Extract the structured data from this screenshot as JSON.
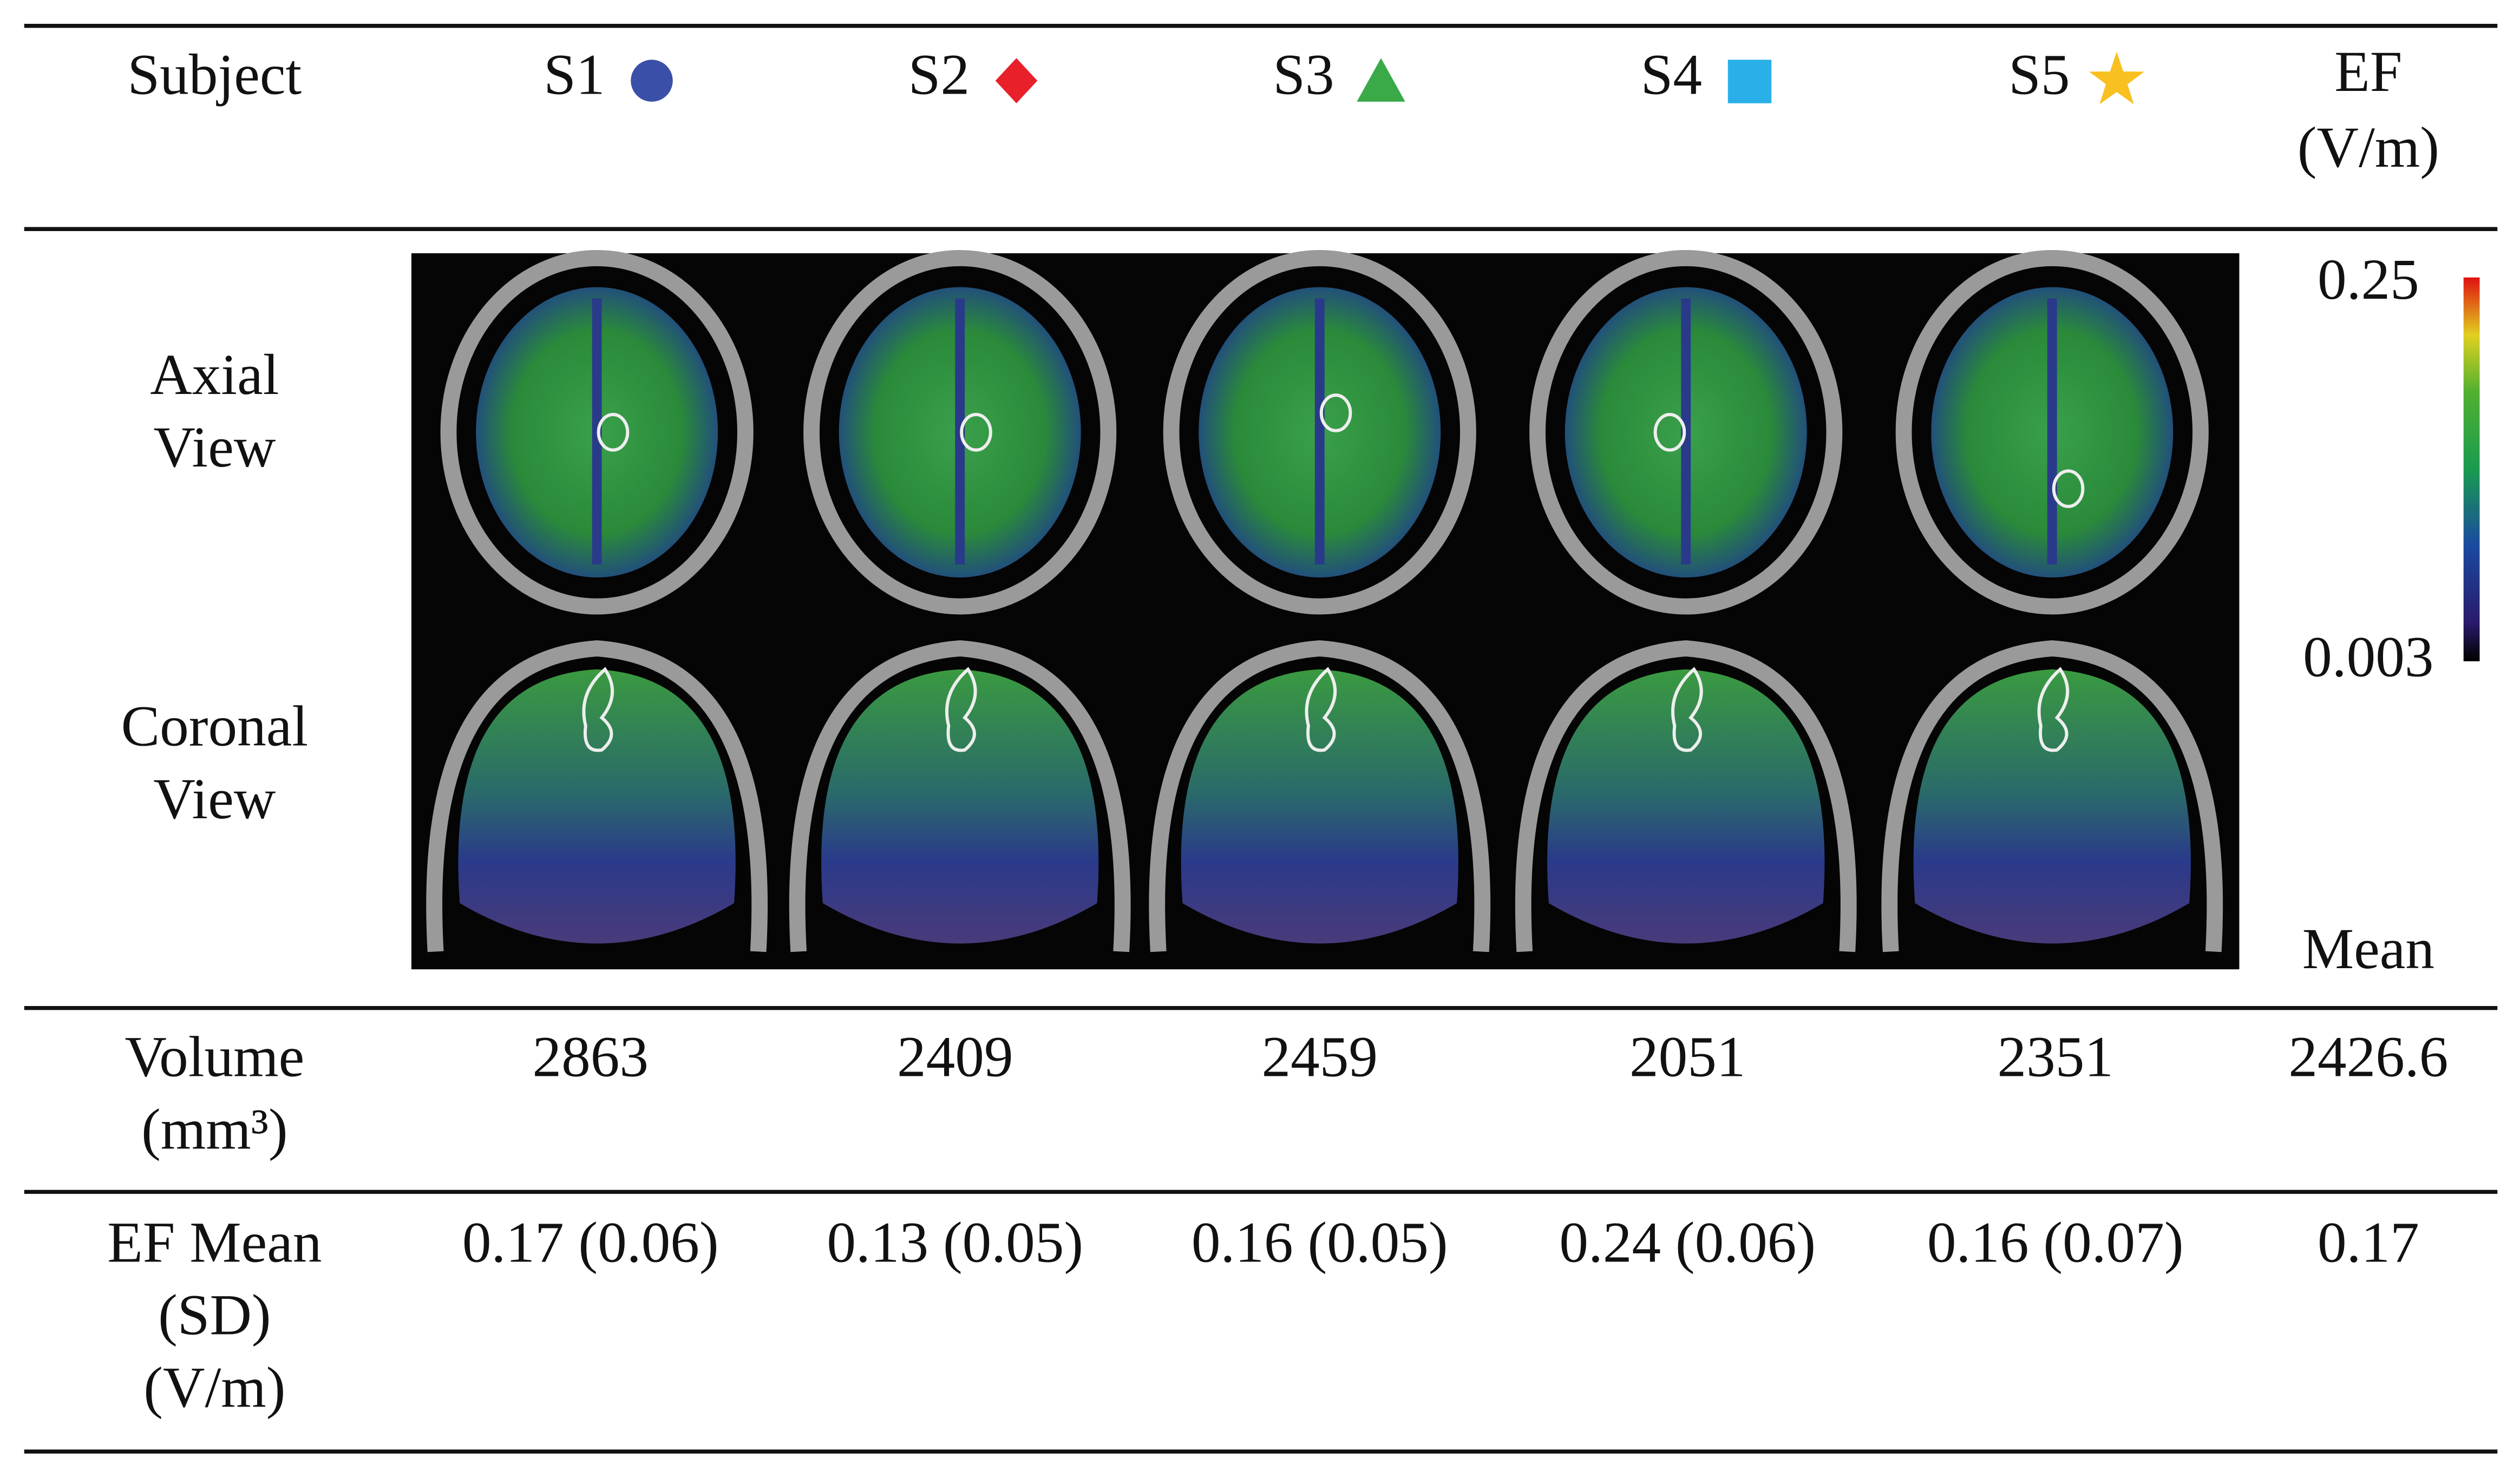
{
  "header": {
    "label": "Subject",
    "subjects": [
      "S1",
      "S2",
      "S3",
      "S4",
      "S5"
    ],
    "unit": [
      "EF",
      "(V/m)"
    ]
  },
  "image_rows": [
    [
      "Axial",
      "View"
    ],
    [
      "Coronal",
      "View"
    ]
  ],
  "colorbar": {
    "max": "0.25",
    "min": "0.003"
  },
  "mean_label": "Mean",
  "rows": [
    {
      "label": [
        "Volume",
        "(mm³)"
      ],
      "values": [
        "2863",
        "2409",
        "2459",
        "2051",
        "2351"
      ],
      "mean": "2426.6"
    },
    {
      "label": [
        "EF Mean",
        "(SD)",
        "(V/m)"
      ],
      "values": [
        "0.17 (0.06)",
        "0.13 (0.05)",
        "0.16 (0.05)",
        "0.24 (0.06)",
        "0.16 (0.07)"
      ],
      "mean": "0.17"
    }
  ]
}
